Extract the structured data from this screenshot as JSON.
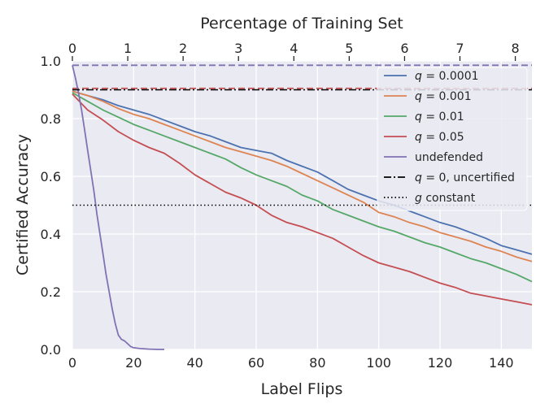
{
  "chart_data": {
    "type": "line",
    "xlabel": "Label Flips",
    "ylabel": "Certified Accuracy",
    "top_xlabel": "Percentage of Training Set",
    "xlim": [
      0,
      150
    ],
    "ylim": [
      0,
      1.0
    ],
    "top_xlim": [
      0,
      8.3
    ],
    "x_ticks": [
      0,
      20,
      40,
      60,
      80,
      100,
      120,
      140
    ],
    "y_ticks": [
      0.0,
      0.2,
      0.4,
      0.6,
      0.8,
      1.0
    ],
    "top_ticks": [
      0,
      1,
      2,
      3,
      4,
      5,
      6,
      7,
      8
    ],
    "grid": true,
    "legend_position": "top-right",
    "series": [
      {
        "name": "q = 0.0001",
        "label_parts": [
          "q",
          " = 0.0001"
        ],
        "style": "solid",
        "color": "#4c72b0",
        "x": [
          0,
          5,
          10,
          15,
          20,
          25,
          30,
          35,
          40,
          45,
          50,
          55,
          60,
          65,
          70,
          75,
          80,
          85,
          90,
          95,
          100,
          105,
          110,
          115,
          120,
          125,
          130,
          135,
          140,
          145,
          150
        ],
        "y": [
          0.895,
          0.88,
          0.865,
          0.845,
          0.83,
          0.815,
          0.795,
          0.775,
          0.755,
          0.74,
          0.72,
          0.7,
          0.69,
          0.68,
          0.655,
          0.635,
          0.615,
          0.585,
          0.555,
          0.535,
          0.515,
          0.5,
          0.48,
          0.46,
          0.44,
          0.425,
          0.405,
          0.385,
          0.36,
          0.345,
          0.33
        ]
      },
      {
        "name": "q = 0.001",
        "label_parts": [
          "q",
          " = 0.001"
        ],
        "style": "solid",
        "color": "#dd8452",
        "x": [
          0,
          5,
          10,
          15,
          20,
          25,
          30,
          35,
          40,
          45,
          50,
          55,
          60,
          65,
          70,
          75,
          80,
          85,
          90,
          95,
          100,
          105,
          110,
          115,
          120,
          125,
          130,
          135,
          140,
          145,
          150
        ],
        "y": [
          0.895,
          0.88,
          0.86,
          0.835,
          0.815,
          0.8,
          0.78,
          0.76,
          0.74,
          0.72,
          0.7,
          0.685,
          0.67,
          0.655,
          0.635,
          0.61,
          0.585,
          0.56,
          0.535,
          0.51,
          0.475,
          0.46,
          0.44,
          0.425,
          0.405,
          0.39,
          0.375,
          0.355,
          0.34,
          0.32,
          0.305
        ]
      },
      {
        "name": "q = 0.01",
        "label_parts": [
          "q",
          " = 0.01"
        ],
        "style": "solid",
        "color": "#55a868",
        "x": [
          0,
          5,
          10,
          15,
          20,
          25,
          30,
          35,
          40,
          45,
          50,
          55,
          60,
          65,
          70,
          75,
          80,
          85,
          90,
          95,
          100,
          105,
          110,
          115,
          120,
          125,
          130,
          135,
          140,
          145,
          150
        ],
        "y": [
          0.89,
          0.86,
          0.83,
          0.805,
          0.78,
          0.76,
          0.74,
          0.72,
          0.7,
          0.68,
          0.66,
          0.63,
          0.605,
          0.585,
          0.565,
          0.535,
          0.515,
          0.485,
          0.465,
          0.445,
          0.425,
          0.41,
          0.39,
          0.37,
          0.355,
          0.335,
          0.315,
          0.3,
          0.28,
          0.26,
          0.235
        ]
      },
      {
        "name": "q = 0.05",
        "label_parts": [
          "q",
          " = 0.05"
        ],
        "style": "solid",
        "color": "#c44e52",
        "x": [
          0,
          5,
          10,
          15,
          20,
          25,
          30,
          35,
          40,
          45,
          50,
          55,
          60,
          65,
          70,
          75,
          80,
          85,
          90,
          95,
          100,
          105,
          110,
          115,
          120,
          125,
          130,
          135,
          140,
          145,
          150
        ],
        "y": [
          0.885,
          0.83,
          0.795,
          0.755,
          0.725,
          0.7,
          0.68,
          0.645,
          0.605,
          0.575,
          0.545,
          0.525,
          0.5,
          0.465,
          0.44,
          0.425,
          0.405,
          0.385,
          0.355,
          0.325,
          0.3,
          0.285,
          0.27,
          0.25,
          0.23,
          0.215,
          0.195,
          0.185,
          0.175,
          0.165,
          0.155
        ]
      },
      {
        "name": "undefended",
        "label_parts": [
          "",
          "undefended"
        ],
        "style": "solid",
        "color": "#8172b3",
        "x": [
          0,
          1,
          2,
          3,
          4,
          5,
          6,
          7,
          8,
          9,
          10,
          11,
          12,
          13,
          14,
          15,
          16,
          17,
          18,
          19,
          20,
          22,
          25,
          28,
          30
        ],
        "y": [
          0.985,
          0.94,
          0.89,
          0.83,
          0.76,
          0.69,
          0.62,
          0.55,
          0.47,
          0.4,
          0.33,
          0.26,
          0.2,
          0.14,
          0.09,
          0.05,
          0.035,
          0.03,
          0.02,
          0.01,
          0.006,
          0.003,
          0.001,
          0.0,
          0.0
        ]
      },
      {
        "name": "q = 0, uncertified",
        "label_parts": [
          "q",
          " = 0, uncertified"
        ],
        "style": "dashdot",
        "color": "#000000",
        "x": [
          0,
          150
        ],
        "y": [
          0.9,
          0.9
        ]
      },
      {
        "name": "g constant",
        "label_parts": [
          "g",
          " constant"
        ],
        "style": "dotted",
        "color": "#000000",
        "x": [
          0,
          150
        ],
        "y": [
          0.5,
          0.5
        ]
      }
    ],
    "reference_lines": [
      {
        "style": "dashed",
        "color": "#c44e52",
        "y": 0.905
      },
      {
        "style": "dashed",
        "color": "#8172b3",
        "y": 0.985
      }
    ]
  }
}
